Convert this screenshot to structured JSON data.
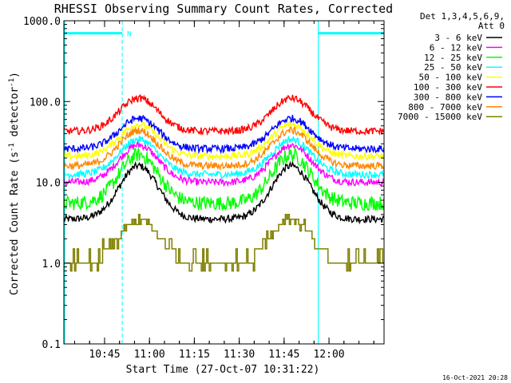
{
  "chart_data": {
    "type": "line",
    "title": "RHESSI Observing Summary Count Rates, Corrected",
    "xlabel": "Start Time (27-Oct-07 10:31:22)",
    "ylabel_main": "Corrected Count Rate (s",
    "ylabel_sup1": "-1",
    "ylabel_mid": " detector",
    "ylabel_sup2": "-1",
    "ylabel_end": ")",
    "y_scale": "log",
    "ylim": [
      0.1,
      1000
    ],
    "xlim_minutes": [
      0,
      107
    ],
    "x_ticks": [
      {
        "label": "10:45",
        "minute": 13.6
      },
      {
        "label": "11:00",
        "minute": 28.6
      },
      {
        "label": "11:15",
        "minute": 43.6
      },
      {
        "label": "11:30",
        "minute": 58.6
      },
      {
        "label": "11:45",
        "minute": 73.6
      },
      {
        "label": "12:00",
        "minute": 88.6
      }
    ],
    "y_ticks": [
      "0.1",
      "1.0",
      "10.0",
      "100.0",
      "1000.0"
    ],
    "y_tick_values": [
      0.1,
      1,
      10,
      100,
      1000
    ],
    "legend_header": [
      "Det 1,3,4,5,6,9,",
      "Att 0"
    ],
    "legend_placement": "right",
    "flags": {
      "night_periods_minutes": [
        [
          0,
          19.5
        ],
        [
          85,
          107
        ]
      ],
      "saa_marker_label": "N",
      "color": "#00ffff"
    },
    "peaks_minutes": [
      25,
      76
    ],
    "series": [
      {
        "name": "3 - 6 keV",
        "color": "#000000",
        "base": 3.5,
        "peak": 16
      },
      {
        "name": "6 - 12 keV",
        "color": "#ff00ff",
        "base": 10,
        "peak": 29
      },
      {
        "name": "12 - 25 keV",
        "color": "#00ff00",
        "base": 5.5,
        "peak": 22
      },
      {
        "name": "25 - 50 keV",
        "color": "#00ffff",
        "base": 12.5,
        "peak": 34
      },
      {
        "name": "50 - 100 keV",
        "color": "#ffff00",
        "base": 21,
        "peak": 52
      },
      {
        "name": "100 - 300 keV",
        "color": "#ff0000",
        "base": 43,
        "peak": 110
      },
      {
        "name": "300 - 800 keV",
        "color": "#0000ff",
        "base": 26,
        "peak": 62
      },
      {
        "name": "800 - 7000 keV",
        "color": "#ff8800",
        "base": 16,
        "peak": 44
      },
      {
        "name": "7000 - 15000 keV",
        "color": "#808000",
        "base": 1.0,
        "peak": 3.5
      }
    ],
    "footer_timestamp": "16-Oct-2021 20:28"
  }
}
